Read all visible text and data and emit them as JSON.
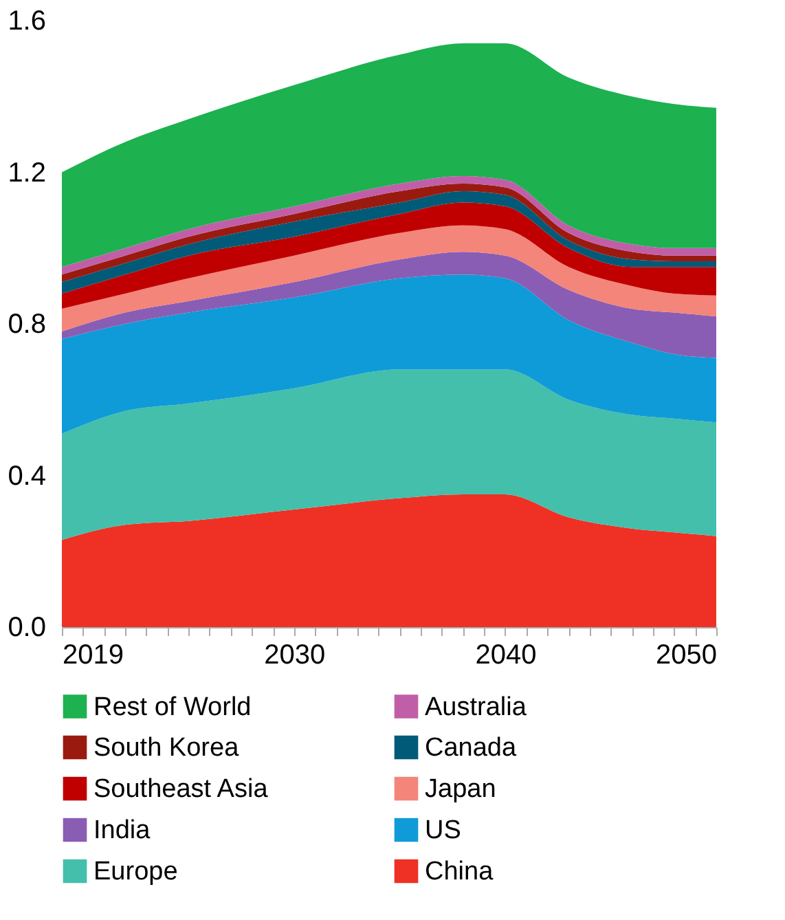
{
  "chart_data": {
    "type": "area",
    "stacked": true,
    "x": [
      2019,
      2022,
      2025,
      2030,
      2035,
      2038,
      2040,
      2043,
      2046,
      2048,
      2050
    ],
    "xlim": [
      2019,
      2050
    ],
    "xticks": [
      2019,
      {
        "value": 2020,
        "label": null
      },
      {
        "value": 2021,
        "label": null
      },
      {
        "value": 2022,
        "label": null
      },
      {
        "value": 2023,
        "label": null
      },
      {
        "value": 2024,
        "label": null
      },
      {
        "value": 2025,
        "label": null
      },
      {
        "value": 2026,
        "label": null
      },
      {
        "value": 2027,
        "label": null
      },
      {
        "value": 2028,
        "label": null
      },
      {
        "value": 2029,
        "label": null
      },
      2030,
      {
        "value": 2031,
        "label": null
      },
      {
        "value": 2032,
        "label": null
      },
      {
        "value": 2033,
        "label": null
      },
      {
        "value": 2034,
        "label": null
      },
      {
        "value": 2035,
        "label": null
      },
      {
        "value": 2036,
        "label": null
      },
      {
        "value": 2037,
        "label": null
      },
      {
        "value": 2038,
        "label": null
      },
      {
        "value": 2039,
        "label": null
      },
      2040,
      {
        "value": 2041,
        "label": null
      },
      {
        "value": 2042,
        "label": null
      },
      {
        "value": 2043,
        "label": null
      },
      {
        "value": 2044,
        "label": null
      },
      {
        "value": 2045,
        "label": null
      },
      {
        "value": 2046,
        "label": null
      },
      {
        "value": 2047,
        "label": null
      },
      {
        "value": 2048,
        "label": null
      },
      {
        "value": 2049,
        "label": null
      },
      2050
    ],
    "ylim": [
      0,
      1.6
    ],
    "yticks": [
      {
        "value": 0,
        "label": "0.0"
      },
      0.4,
      0.8,
      1.2,
      1.6
    ],
    "grid": false,
    "legend": "bottom",
    "series": [
      {
        "name": "China",
        "color": "#ee3124",
        "values": [
          0.23,
          0.27,
          0.28,
          0.31,
          0.34,
          0.35,
          0.35,
          0.29,
          0.26,
          0.25,
          0.24
        ]
      },
      {
        "name": "Europe",
        "color": "#43bfab",
        "values": [
          0.28,
          0.3,
          0.31,
          0.32,
          0.34,
          0.33,
          0.33,
          0.31,
          0.3,
          0.3,
          0.3
        ]
      },
      {
        "name": "US",
        "color": "#0f9bd7",
        "values": [
          0.25,
          0.23,
          0.24,
          0.24,
          0.24,
          0.25,
          0.24,
          0.21,
          0.19,
          0.17,
          0.17
        ]
      },
      {
        "name": "India",
        "color": "#8a5db4",
        "values": [
          0.02,
          0.03,
          0.03,
          0.04,
          0.05,
          0.06,
          0.06,
          0.08,
          0.09,
          0.11,
          0.11
        ]
      },
      {
        "name": "Japan",
        "color": "#f4857a",
        "values": [
          0.06,
          0.05,
          0.06,
          0.07,
          0.07,
          0.07,
          0.07,
          0.06,
          0.06,
          0.05,
          0.055
        ]
      },
      {
        "name": "Southeast Asia",
        "color": "#c00000",
        "values": [
          0.04,
          0.05,
          0.06,
          0.05,
          0.05,
          0.06,
          0.06,
          0.05,
          0.05,
          0.07,
          0.075
        ]
      },
      {
        "name": "Canada",
        "color": "#005a78",
        "values": [
          0.03,
          0.03,
          0.03,
          0.04,
          0.03,
          0.03,
          0.03,
          0.02,
          0.02,
          0.015,
          0.015
        ]
      },
      {
        "name": "South Korea",
        "color": "#9b1a10",
        "values": [
          0.02,
          0.02,
          0.02,
          0.02,
          0.03,
          0.02,
          0.02,
          0.02,
          0.02,
          0.015,
          0.015
        ]
      },
      {
        "name": "Australia",
        "color": "#c05fa8",
        "values": [
          0.02,
          0.02,
          0.02,
          0.02,
          0.02,
          0.02,
          0.02,
          0.02,
          0.02,
          0.02,
          0.02
        ]
      },
      {
        "name": "Rest of World",
        "color": "#1db150",
        "values": [
          0.25,
          0.28,
          0.29,
          0.32,
          0.34,
          0.35,
          0.36,
          0.39,
          0.39,
          0.38,
          0.37
        ]
      }
    ]
  }
}
